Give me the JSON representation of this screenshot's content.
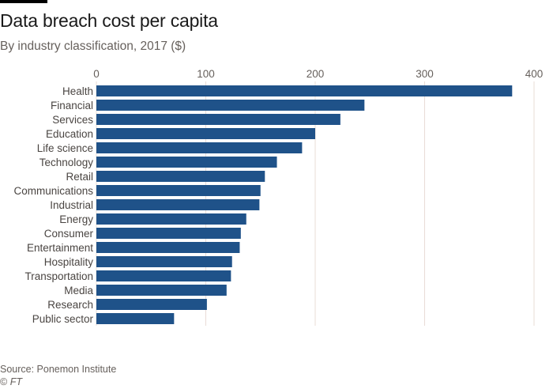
{
  "title": "Data breach cost per capita",
  "subtitle": "By industry classification, 2017 ($)",
  "source": "Source: Ponemon Institute",
  "copyright_symbol": "©",
  "copyright_text": "FT",
  "colors": {
    "bar": "#1f5289",
    "grid": "#e9dcd6",
    "text": "#66605c"
  },
  "chart_data": {
    "type": "bar",
    "orientation": "horizontal",
    "title": "Data breach cost per capita",
    "subtitle": "By industry classification, 2017 ($)",
    "xlabel": "",
    "ylabel": "",
    "xlim": [
      0,
      400
    ],
    "xticks": [
      0,
      100,
      200,
      300,
      400
    ],
    "xtick_labels": [
      "0",
      "100",
      "200",
      "300",
      "400"
    ],
    "xaxis_position": "top",
    "grid": true,
    "categories": [
      "Health",
      "Financial",
      "Services",
      "Education",
      "Life science",
      "Technology",
      "Retail",
      "Communications",
      "Industrial",
      "Energy",
      "Consumer",
      "Entertainment",
      "Hospitality",
      "Transportation",
      "Media",
      "Research",
      "Public sector"
    ],
    "values": [
      380,
      245,
      223,
      200,
      188,
      165,
      154,
      150,
      149,
      137,
      132,
      131,
      124,
      123,
      119,
      101,
      71
    ]
  }
}
